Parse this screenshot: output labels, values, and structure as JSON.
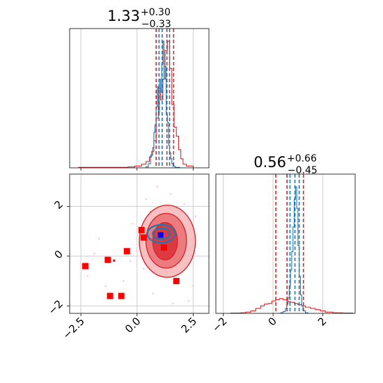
{
  "chart_data": {
    "type": "corner",
    "colors": {
      "blue": "#1f77b4",
      "red": "#d62728",
      "marker_red": "#ff0000",
      "marker_blue": "#0000ff",
      "scatter": "#ffb6c1",
      "grid": "#cccccc"
    },
    "grid": true,
    "param1": {
      "title": {
        "median": "1.33",
        "upper": "+0.30",
        "lower": "−0.33"
      },
      "xlim": [
        -3.0,
        3.2
      ],
      "xticks": [
        {
          "value": -2.5,
          "label": "−2.5"
        },
        {
          "value": 0.0,
          "label": "0.0"
        },
        {
          "value": 2.5,
          "label": "2.5"
        }
      ],
      "quantiles_red": [
        0.85,
        1.33,
        1.63
      ],
      "quantiles_blue": [
        0.98,
        1.12,
        1.45
      ],
      "hist_red": {
        "edges": [
          -2.6,
          -0.4,
          -0.1,
          0.2,
          0.4,
          0.55,
          0.65,
          0.75,
          0.85,
          0.95,
          1.05,
          1.15,
          1.25,
          1.35,
          1.45,
          1.55,
          1.65,
          1.75,
          1.85,
          1.95,
          2.05,
          2.2,
          2.5
        ],
        "counts": [
          0.5,
          1,
          2,
          4,
          7,
          12,
          18,
          30,
          55,
          88,
          75,
          98,
          130,
          140,
          110,
          70,
          45,
          35,
          20,
          10,
          4,
          2
        ]
      },
      "hist_blue": {
        "edges": [
          0.4,
          0.5,
          0.6,
          0.7,
          0.75,
          0.8,
          0.85,
          0.9,
          0.95,
          1.0,
          1.05,
          1.1,
          1.15,
          1.2,
          1.25,
          1.3,
          1.35,
          1.4,
          1.45,
          1.5,
          1.55,
          1.6,
          1.7,
          1.9
        ],
        "counts": [
          2,
          8,
          25,
          40,
          70,
          85,
          120,
          160,
          110,
          175,
          150,
          205,
          250,
          175,
          200,
          105,
          90,
          45,
          30,
          18,
          8,
          3,
          1
        ]
      }
    },
    "param2": {
      "title": {
        "median": "0.56",
        "upper": "+0.66",
        "lower": "−0.45"
      },
      "ylim": [
        -2.3,
        3.3
      ],
      "xlim": [
        -2.3,
        3.3
      ],
      "yticks": [
        {
          "value": -2,
          "label": "−2"
        },
        {
          "value": 0,
          "label": "0"
        },
        {
          "value": 2,
          "label": "2"
        }
      ],
      "xticks": [
        {
          "value": -2,
          "label": "−2"
        },
        {
          "value": 0,
          "label": "0"
        },
        {
          "value": 2,
          "label": "2"
        }
      ],
      "quantiles_red": [
        0.11,
        0.56,
        1.22
      ],
      "quantiles_blue": [
        0.68,
        0.88,
        1.05
      ],
      "hist_red": {
        "edges": [
          -1.7,
          -1.3,
          -1.1,
          -0.9,
          -0.7,
          -0.5,
          -0.35,
          -0.2,
          -0.05,
          0.1,
          0.25,
          0.4,
          0.55,
          0.7,
          0.85,
          1.0,
          1.15,
          1.3,
          1.5,
          1.7,
          1.9,
          2.1,
          2.4,
          2.8,
          3.2
        ],
        "counts": [
          0.5,
          1,
          2,
          4,
          8,
          12,
          15,
          16,
          20,
          22,
          24,
          22,
          19,
          18,
          16,
          14,
          12,
          10,
          8,
          6,
          4,
          2,
          1,
          0.5
        ]
      },
      "hist_blue": {
        "edges": [
          0.3,
          0.4,
          0.5,
          0.55,
          0.6,
          0.65,
          0.7,
          0.75,
          0.8,
          0.85,
          0.9,
          0.95,
          1.0,
          1.05,
          1.1,
          1.15,
          1.2,
          1.3,
          1.4
        ],
        "counts": [
          1,
          3,
          8,
          15,
          25,
          45,
          70,
          100,
          140,
          185,
          205,
          170,
          110,
          60,
          30,
          12,
          4,
          1
        ]
      }
    },
    "joint": {
      "red_contours": [
        {
          "cx": 1.35,
          "cy": 0.6,
          "rx": 1.25,
          "ry": 1.45,
          "level": 1
        },
        {
          "cx": 1.3,
          "cy": 0.62,
          "rx": 0.9,
          "ry": 1.1,
          "level": 2
        },
        {
          "cx": 1.25,
          "cy": 0.6,
          "rx": 0.55,
          "ry": 0.75,
          "level": 3
        }
      ],
      "blue_contours": [
        {
          "cx": 1.08,
          "cy": 0.9,
          "rx": 0.62,
          "ry": 0.36
        },
        {
          "cx": 1.08,
          "cy": 0.9,
          "rx": 0.38,
          "ry": 0.22
        }
      ],
      "red_squares": [
        [
          -2.3,
          -0.4
        ],
        [
          -1.3,
          -0.15
        ],
        [
          -1.2,
          -1.6
        ],
        [
          -0.7,
          -1.6
        ],
        [
          -0.45,
          0.2
        ],
        [
          0.2,
          1.05
        ],
        [
          0.3,
          0.75
        ],
        [
          1.2,
          0.35
        ],
        [
          1.75,
          -1.0
        ]
      ],
      "blue_square": [
        1.05,
        0.85
      ],
      "small_points": [
        [
          -1.0,
          -0.2
        ],
        [
          1.0,
          2.0
        ],
        [
          2.3,
          -1.8
        ],
        [
          0.3,
          -0.5
        ],
        [
          -1.7,
          0.7
        ],
        [
          1.5,
          2.5
        ],
        [
          2.2,
          0.6
        ],
        [
          -0.6,
          -1.0
        ],
        [
          0.0,
          0.2
        ],
        [
          2.6,
          1.6
        ],
        [
          -2.2,
          -0.8
        ],
        [
          0.7,
          -1.5
        ],
        [
          1.3,
          -0.6
        ],
        [
          2.0,
          -0.2
        ],
        [
          -0.2,
          1.3
        ],
        [
          0.6,
          1.8
        ],
        [
          1.9,
          1.2
        ],
        [
          -1.4,
          -1.2
        ],
        [
          0.9,
          2.8
        ],
        [
          2.5,
          -1.2
        ],
        [
          -0.3,
          -0.2
        ],
        [
          1.6,
          -1.9
        ],
        [
          0.4,
          2.3
        ],
        [
          -1.9,
          0.1
        ],
        [
          2.1,
          2.1
        ]
      ]
    }
  }
}
